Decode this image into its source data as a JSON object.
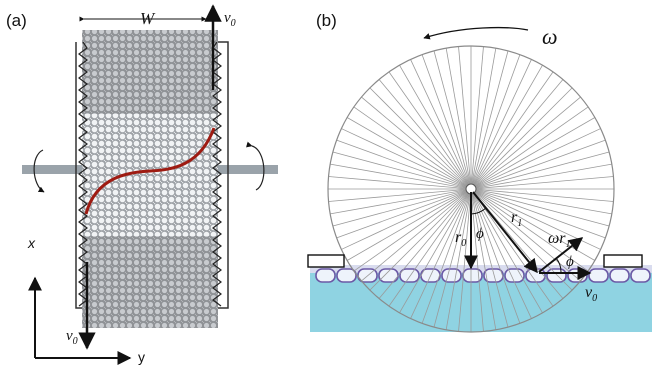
{
  "panel_a": {
    "panel_label": "(a)",
    "width_label": "W",
    "velocity_top_label": "v",
    "velocity_top_sub": "0",
    "velocity_bottom_label": "v",
    "velocity_bottom_sub": "0",
    "x_axis_label": "x",
    "y_axis_label": "y",
    "colors": {
      "wall": "#333333",
      "rotation_bar": "#9aa3aa",
      "profile_curve": "#9e1b12",
      "bubble_dark": "#8f9296",
      "bubble_light": "#e9ecef"
    }
  },
  "panel_b": {
    "panel_label": "(b)",
    "omega_label": "ω",
    "r0_label": "r",
    "r0_sub": "0",
    "r1_label": "r",
    "r1_sub": "1",
    "phi_label_center": "ϕ",
    "phi_label_side": "ϕ",
    "omega_r1_label": "ωr",
    "omega_r1_sub": "1",
    "v0_label": "v",
    "v0_sub": "0",
    "colors": {
      "liquid": "#8fd3e2",
      "spokes": "#9a9a9a",
      "bubble_outline": "#6c5aa6"
    }
  }
}
